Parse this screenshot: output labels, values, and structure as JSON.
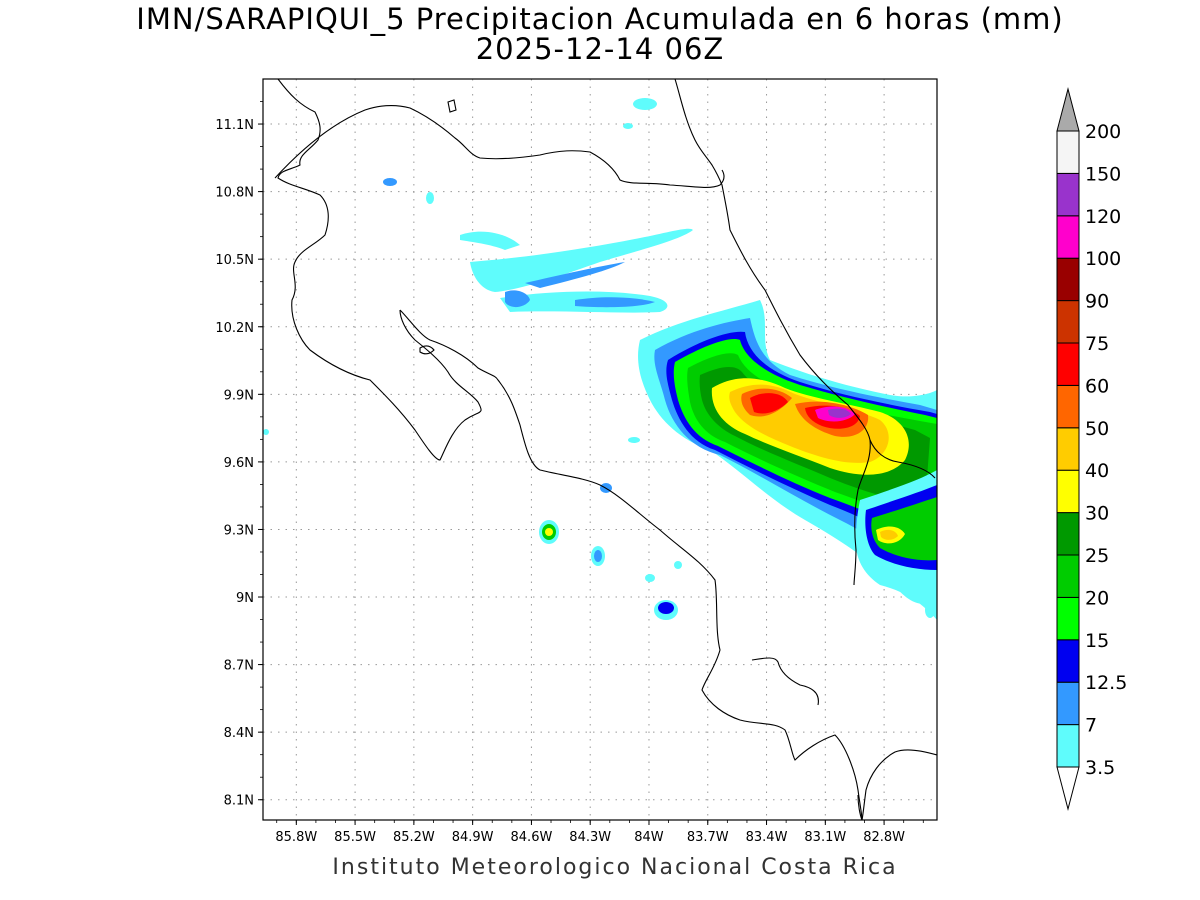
{
  "title": {
    "line1": "IMN/SARAPIQUI_5 Precipitacion Acumulada en 6 horas (mm)",
    "line2": "2025-12-14 06Z"
  },
  "credit": "Instituto Meteorologico Nacional Costa Rica",
  "map": {
    "lat_ticks": [
      "11.1N",
      "10.8N",
      "10.5N",
      "10.2N",
      "9.9N",
      "9.6N",
      "9.3N",
      "9N",
      "8.7N",
      "8.4N",
      "8.1N"
    ],
    "lat_values": [
      11.1,
      10.8,
      10.5,
      10.2,
      9.9,
      9.6,
      9.3,
      9.0,
      8.7,
      8.4,
      8.1
    ],
    "lon_ticks": [
      "85.8W",
      "85.5W",
      "85.2W",
      "84.9W",
      "84.6W",
      "84.3W",
      "84W",
      "83.7W",
      "83.4W",
      "83.1W",
      "82.8W"
    ],
    "lon_values": [
      -85.8,
      -85.5,
      -85.2,
      -84.9,
      -84.6,
      -84.3,
      -84.0,
      -83.7,
      -83.4,
      -83.1,
      -82.8
    ],
    "lon_range": [
      -85.97,
      -82.53
    ],
    "lat_range": [
      8.01,
      11.3
    ],
    "grid": "dotted"
  },
  "colorbar": {
    "levels": [
      "3.5",
      "7",
      "12.5",
      "15",
      "20",
      "25",
      "30",
      "40",
      "50",
      "60",
      "75",
      "90",
      "100",
      "120",
      "150",
      "200"
    ],
    "colors": [
      "#5ffcfc",
      "#3399ff",
      "#0000f0",
      "#00ff00",
      "#00cc00",
      "#009900",
      "#ffff00",
      "#ffcc00",
      "#ff6600",
      "#ff0000",
      "#cc3300",
      "#990000",
      "#ff00cc",
      "#9933cc",
      "#f5f5f5"
    ],
    "under_color": "#ffffff",
    "over_color": "#aaaaaa"
  }
}
